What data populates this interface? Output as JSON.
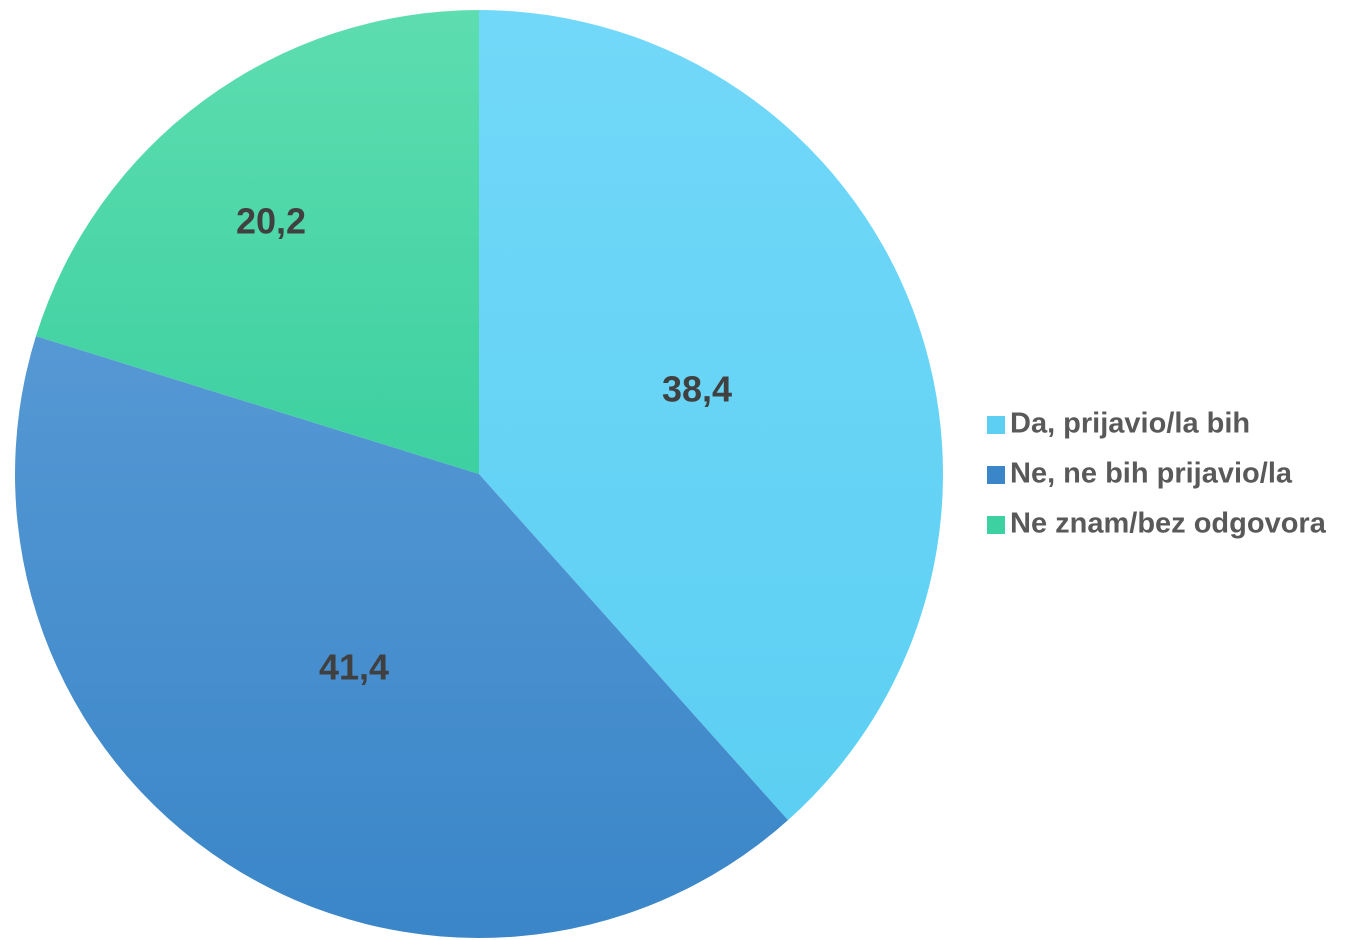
{
  "chart_data": {
    "type": "pie",
    "title": "",
    "slices": [
      {
        "label": "Da, prijavio/la bih",
        "value": 38.4,
        "display": "38,4",
        "color": "#5ccff2",
        "color_light": "#72d8f9"
      },
      {
        "label": "Ne, ne bih prijavio/la",
        "value": 41.4,
        "display": "41,4",
        "color": "#3a86c8",
        "color_light": "#5598d4"
      },
      {
        "label": "Ne znam/bez odgovora",
        "value": 20.2,
        "display": "20,2",
        "color": "#3dd0a0",
        "color_light": "#5dddb0"
      }
    ],
    "start": "12 o'clock",
    "direction": "clockwise",
    "legend_position": "right"
  }
}
